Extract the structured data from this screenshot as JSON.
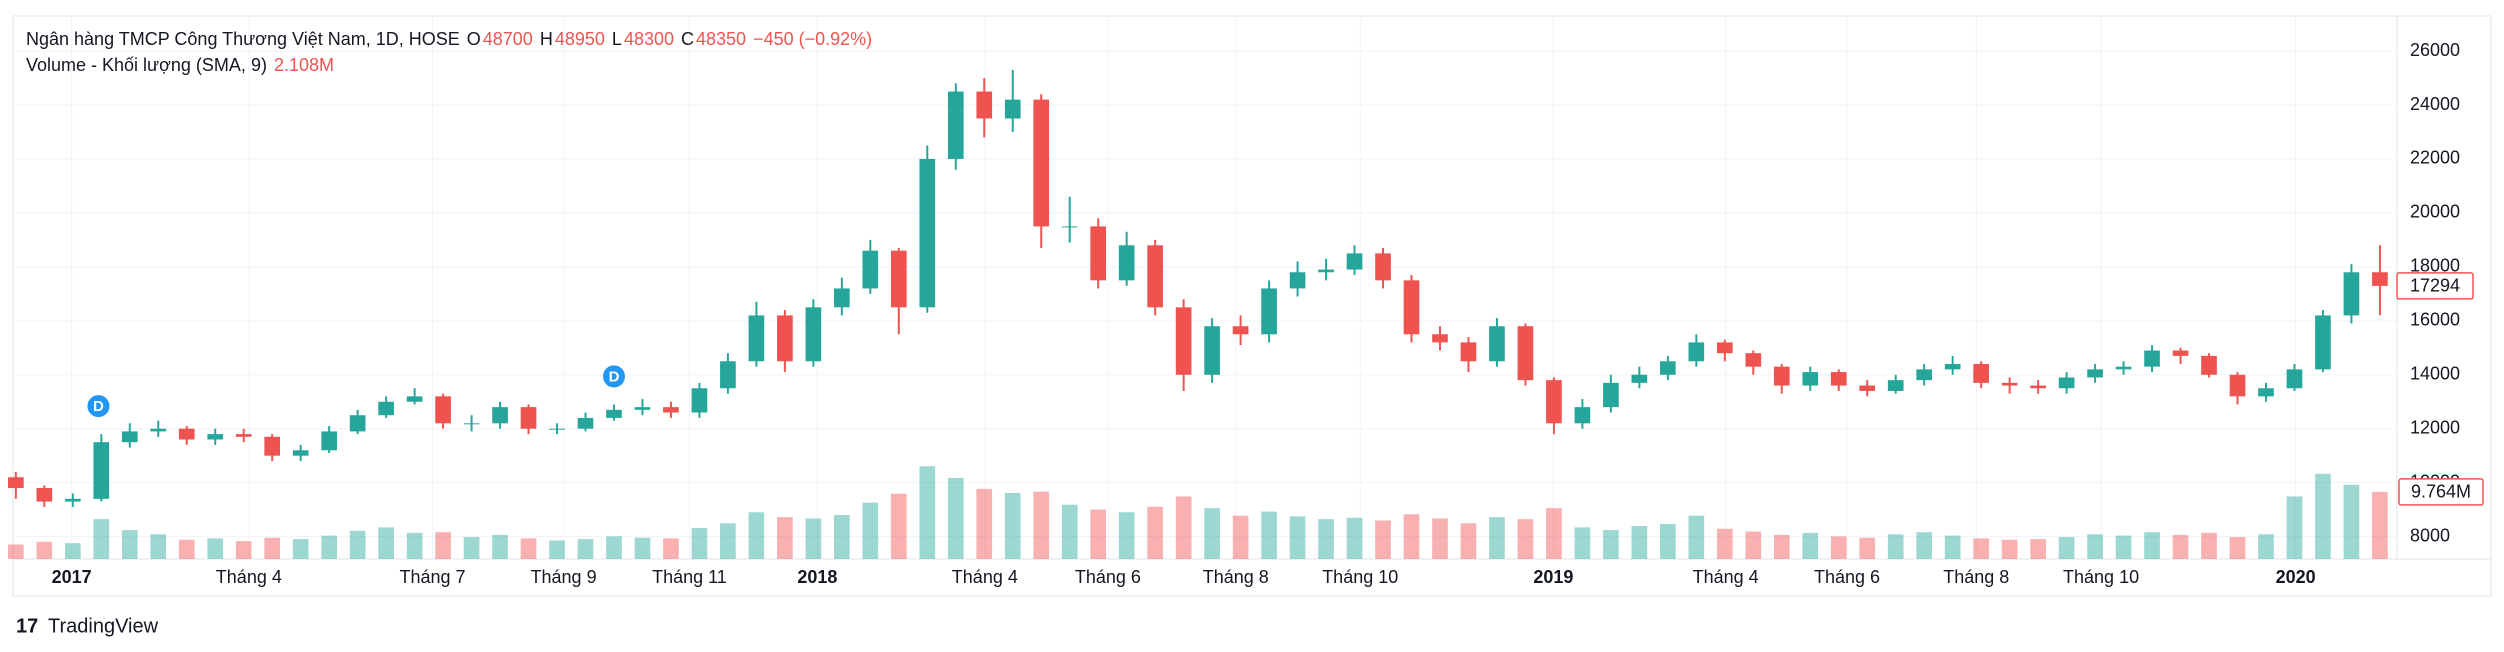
{
  "chart_data": {
    "type": "candlestick",
    "title": "Ngân hàng TMCP Công Thương Việt Nam, 1D, HOSE",
    "ohlc_legend": [
      {
        "label": "O",
        "value": 48700
      },
      {
        "label": "H",
        "value": 48950
      },
      {
        "label": "L",
        "value": 48300
      },
      {
        "label": "C",
        "value": 48350
      }
    ],
    "change_label": "−450 (−0.92%)",
    "volume_title": "Volume - Khối lượng (SMA, 9)",
    "volume_sma_label": "2.108M",
    "x": [
      0,
      1,
      2,
      3,
      4,
      5,
      6,
      7,
      8,
      9,
      10,
      11,
      12,
      13,
      14,
      15,
      16,
      17,
      18,
      19,
      20,
      21,
      22,
      23,
      24,
      25,
      26,
      27,
      28,
      29,
      30,
      31,
      32,
      33,
      34,
      35,
      36,
      37,
      38,
      39,
      40,
      41,
      42,
      43,
      44,
      45,
      46,
      47,
      48,
      49,
      50,
      51,
      52,
      53,
      54,
      55,
      56,
      57,
      58,
      59,
      60,
      61,
      62,
      63,
      64,
      65,
      66,
      67,
      68,
      69,
      70,
      71,
      72,
      73,
      74,
      75,
      76,
      77,
      78,
      79,
      80,
      81,
      82,
      83
    ],
    "open": [
      10200,
      9800,
      9300,
      9400,
      11500,
      11900,
      12000,
      11600,
      11800,
      11700,
      11000,
      11200,
      11900,
      12500,
      13000,
      13200,
      12200,
      12200,
      12800,
      12000,
      12000,
      12400,
      12700,
      12800,
      12600,
      13500,
      14500,
      16200,
      14500,
      16500,
      17200,
      18600,
      16500,
      22000,
      24500,
      23500,
      24200,
      19500,
      19500,
      17500,
      18800,
      16500,
      14000,
      15800,
      15500,
      17200,
      17800,
      17900,
      18500,
      17500,
      15500,
      15200,
      14500,
      15800,
      13800,
      12200,
      12800,
      13700,
      14000,
      14500,
      15200,
      14800,
      14300,
      13600,
      14100,
      13600,
      13400,
      13800,
      14200,
      14400,
      13700,
      13600,
      13500,
      13900,
      14200,
      14300,
      14900,
      14700,
      14000,
      13200,
      13500,
      14200,
      16200,
      17800
    ],
    "high": [
      10400,
      9900,
      9600,
      11800,
      12200,
      12300,
      12100,
      12000,
      12000,
      11800,
      11400,
      12100,
      12700,
      13200,
      13500,
      13300,
      12500,
      13000,
      12900,
      12200,
      12600,
      12900,
      13100,
      13000,
      13700,
      14800,
      16700,
      16400,
      16800,
      17600,
      19000,
      18700,
      22500,
      24800,
      25000,
      25300,
      24400,
      20600,
      19800,
      19300,
      19000,
      16800,
      16100,
      16200,
      17500,
      18200,
      18300,
      18800,
      18700,
      17700,
      15800,
      15400,
      16100,
      15900,
      13900,
      13100,
      14000,
      14300,
      14700,
      15500,
      15300,
      14900,
      14400,
      14300,
      14200,
      13800,
      14000,
      14400,
      14700,
      14500,
      13900,
      13800,
      14100,
      14400,
      14500,
      15100,
      15000,
      14800,
      14100,
      13700,
      14400,
      16400,
      18100,
      18800
    ],
    "low": [
      9400,
      9100,
      9100,
      9300,
      11300,
      11700,
      11400,
      11400,
      11500,
      10800,
      10800,
      11100,
      11800,
      12400,
      12900,
      12000,
      11900,
      12000,
      11800,
      11800,
      11900,
      12300,
      12500,
      12400,
      12400,
      13300,
      14300,
      14100,
      14300,
      16200,
      17000,
      15500,
      16300,
      21600,
      22800,
      23000,
      18700,
      18900,
      17200,
      17300,
      16200,
      13400,
      13700,
      15100,
      15200,
      16900,
      17500,
      17700,
      17200,
      15200,
      14900,
      14100,
      14300,
      13600,
      11800,
      12000,
      12600,
      13500,
      13800,
      14300,
      14500,
      14000,
      13300,
      13400,
      13400,
      13200,
      13300,
      13600,
      14000,
      13500,
      13300,
      13300,
      13300,
      13700,
      14000,
      14100,
      14400,
      13900,
      12900,
      13000,
      13400,
      14100,
      15900,
      16200
    ],
    "close": [
      9800,
      9300,
      9400,
      11500,
      11900,
      12000,
      11600,
      11800,
      11700,
      11000,
      11200,
      11900,
      12500,
      13000,
      13200,
      12200,
      12200,
      12800,
      12000,
      12000,
      12400,
      12700,
      12800,
      12600,
      13500,
      14500,
      16200,
      14500,
      16500,
      17200,
      18600,
      16500,
      22000,
      24500,
      23500,
      24200,
      19500,
      19500,
      17500,
      18800,
      16500,
      14000,
      15800,
      15500,
      17200,
      17800,
      17900,
      18500,
      17500,
      15500,
      15200,
      14500,
      15800,
      13800,
      12200,
      12800,
      13700,
      14000,
      14500,
      15200,
      14800,
      14300,
      13600,
      14100,
      13600,
      13400,
      13800,
      14200,
      14400,
      13700,
      13600,
      13500,
      13900,
      14200,
      14300,
      14900,
      14700,
      14000,
      13200,
      13500,
      14200,
      16200,
      17800,
      17294
    ],
    "volume": [
      2.1,
      2.5,
      2.3,
      5.8,
      4.2,
      3.6,
      2.8,
      3.0,
      2.6,
      3.1,
      2.9,
      3.4,
      4.1,
      4.6,
      3.8,
      3.9,
      3.2,
      3.5,
      3.0,
      2.7,
      2.9,
      3.3,
      3.1,
      3.0,
      4.5,
      5.2,
      6.8,
      6.1,
      5.9,
      6.4,
      8.2,
      9.5,
      13.5,
      11.8,
      10.2,
      9.6,
      9.8,
      7.9,
      7.2,
      6.8,
      7.6,
      9.1,
      7.4,
      6.3,
      6.9,
      6.2,
      5.8,
      6.0,
      5.6,
      6.5,
      5.9,
      5.2,
      6.1,
      5.8,
      7.4,
      4.6,
      4.2,
      4.8,
      5.1,
      6.3,
      4.4,
      4.0,
      3.5,
      3.8,
      3.3,
      3.1,
      3.6,
      3.9,
      3.4,
      3.0,
      2.8,
      2.9,
      3.2,
      3.6,
      3.4,
      3.9,
      3.5,
      3.8,
      3.2,
      3.6,
      9.1,
      12.4,
      10.8,
      9.764
    ],
    "last_volume_label": "9.764M",
    "up_color": "#26a69a",
    "down_color": "#ef5350",
    "xlim": [
      -0.1,
      83.6
    ],
    "xticks": [
      {
        "value": 1.96,
        "label": "2017"
      },
      {
        "value": 8.18,
        "label": "Tháng 4"
      },
      {
        "value": 14.63,
        "label": "Tháng 7"
      },
      {
        "value": 19.23,
        "label": "Tháng 9"
      },
      {
        "value": 23.65,
        "label": "Tháng 11"
      },
      {
        "value": 28.14,
        "label": "2018"
      },
      {
        "value": 34.02,
        "label": "Tháng 4"
      },
      {
        "value": 38.34,
        "label": "Tháng 6"
      },
      {
        "value": 42.83,
        "label": "Tháng 8"
      },
      {
        "value": 47.2,
        "label": "Tháng 10"
      },
      {
        "value": 53.98,
        "label": "2019"
      },
      {
        "value": 60.03,
        "label": "Tháng 4"
      },
      {
        "value": 64.29,
        "label": "Tháng 6"
      },
      {
        "value": 68.83,
        "label": "Tháng 8"
      },
      {
        "value": 73.21,
        "label": "Tháng 10"
      },
      {
        "value": 80.04,
        "label": "2020"
      }
    ],
    "ylim": [
      7170,
      27300
    ],
    "yticks": [
      8000,
      10000,
      12000,
      14000,
      16000,
      18000,
      20000,
      22000,
      24000,
      26000
    ],
    "volume_lim": [
      0,
      79
    ],
    "grid": true,
    "events": [
      {
        "x": 2.9,
        "label": "D"
      },
      {
        "x": 21,
        "label": "D"
      }
    ],
    "branding": "TradingView"
  }
}
